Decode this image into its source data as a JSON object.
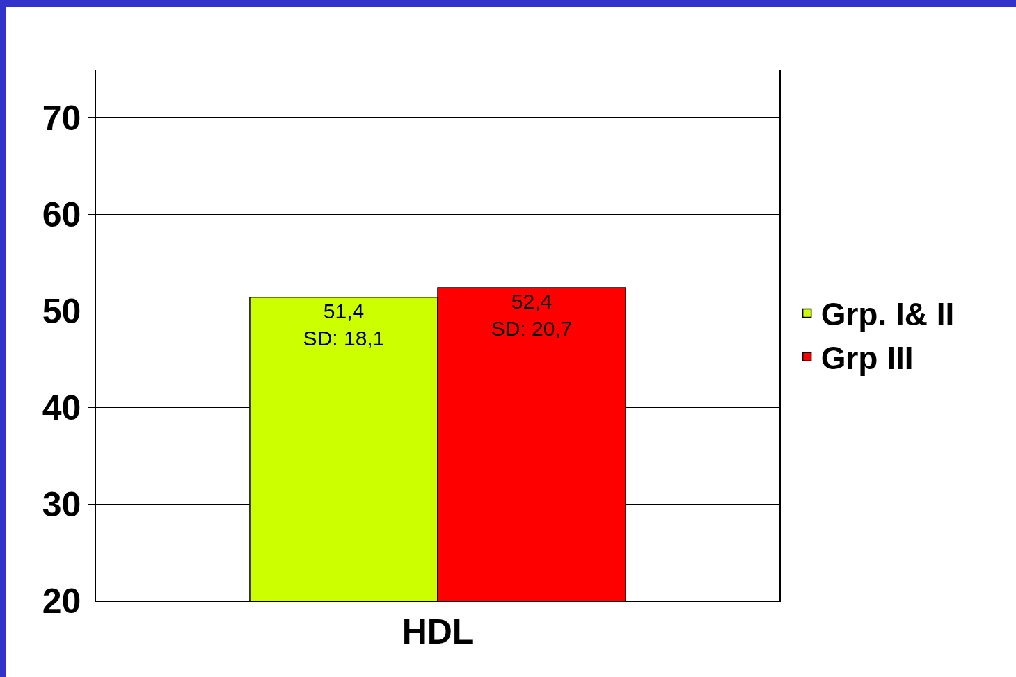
{
  "chart_data": {
    "type": "bar",
    "categories": [
      "HDL"
    ],
    "series": [
      {
        "name": "Grp. I& II",
        "color": "#ccff00",
        "values": [
          51.4
        ],
        "value_labels": [
          "51,4\nSD: 18,1"
        ]
      },
      {
        "name": "Grp III",
        "color": "#ff0000",
        "values": [
          52.4
        ],
        "value_labels": [
          "52,4\nSD: 20,7"
        ]
      }
    ],
    "ylim": [
      20,
      75
    ],
    "yticks": [
      20,
      30,
      40,
      50,
      60,
      70
    ],
    "grid": "y",
    "legend": "right"
  }
}
